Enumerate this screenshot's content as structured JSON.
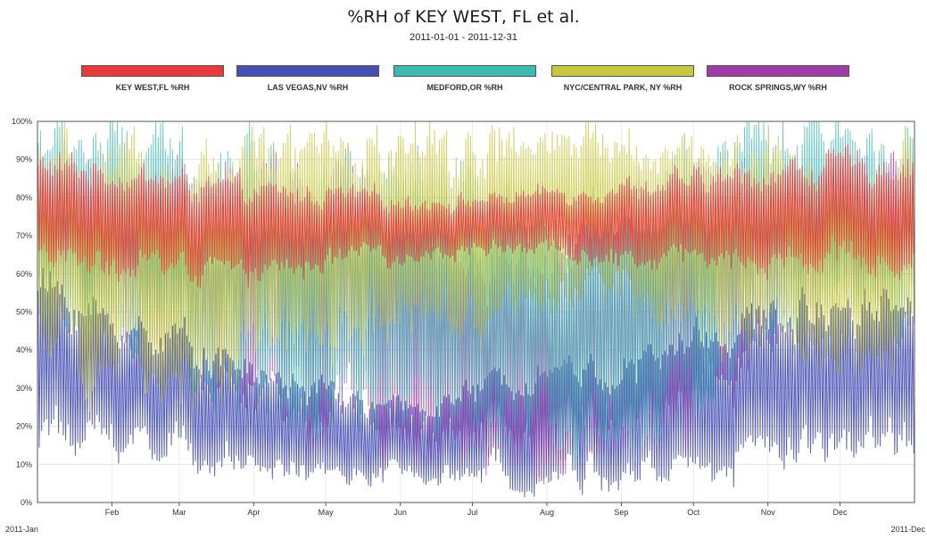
{
  "chart_data": {
    "type": "line",
    "title": "%RH of KEY WEST, FL et al.",
    "subtitle": "2011-01-01 - 2011-12-31",
    "x_range": [
      "2011-01-01",
      "2011-12-31"
    ],
    "x_edge_labels": [
      "2011-Jan",
      "2011-Dec"
    ],
    "x_tick_labels": [
      "Feb",
      "Mar",
      "Apr",
      "May",
      "Jun",
      "Jul",
      "Aug",
      "Sep",
      "Oct",
      "Nov",
      "Dec"
    ],
    "y_tick_labels": [
      "0%",
      "10%",
      "20%",
      "30%",
      "40%",
      "50%",
      "60%",
      "70%",
      "80%",
      "90%",
      "100%"
    ],
    "ylim": [
      0,
      100
    ],
    "y_unit": "%",
    "grid": true,
    "legend_position": "top",
    "resolution": "hourly observations, plotted here as 2 samples per day",
    "series": [
      {
        "name": "KEY WEST,FL %RH",
        "color": "#e83a3a",
        "monthly_typical_range": [
          [
            62,
            90
          ],
          [
            62,
            88
          ],
          [
            60,
            85
          ],
          [
            58,
            82
          ],
          [
            62,
            82
          ],
          [
            64,
            80
          ],
          [
            66,
            80
          ],
          [
            66,
            82
          ],
          [
            64,
            84
          ],
          [
            62,
            85
          ],
          [
            62,
            88
          ],
          [
            62,
            90
          ]
        ]
      },
      {
        "name": "LAS VEGAS,NV %RH",
        "color": "#4650b4",
        "monthly_typical_range": [
          [
            17,
            60
          ],
          [
            15,
            48
          ],
          [
            12,
            45
          ],
          [
            8,
            35
          ],
          [
            6,
            30
          ],
          [
            6,
            25
          ],
          [
            6,
            30
          ],
          [
            8,
            38
          ],
          [
            5,
            35
          ],
          [
            8,
            45
          ],
          [
            12,
            50
          ],
          [
            16,
            55
          ]
        ]
      },
      {
        "name": "MEDFORD,OR %RH",
        "color": "#3cbab4",
        "monthly_typical_range": [
          [
            50,
            98
          ],
          [
            40,
            96
          ],
          [
            35,
            94
          ],
          [
            30,
            92
          ],
          [
            25,
            90
          ],
          [
            20,
            85
          ],
          [
            15,
            80
          ],
          [
            18,
            75
          ],
          [
            18,
            80
          ],
          [
            25,
            92
          ],
          [
            40,
            96
          ],
          [
            50,
            98
          ]
        ]
      },
      {
        "name": "NYC/CENTRAL PARK, NY %RH",
        "color": "#c8c83c",
        "monthly_typical_range": [
          [
            40,
            90
          ],
          [
            30,
            88
          ],
          [
            30,
            90
          ],
          [
            35,
            92
          ],
          [
            40,
            95
          ],
          [
            45,
            95
          ],
          [
            45,
            95
          ],
          [
            50,
            95
          ],
          [
            55,
            96
          ],
          [
            45,
            95
          ],
          [
            40,
            92
          ],
          [
            40,
            90
          ]
        ]
      },
      {
        "name": "ROCK SPRINGS,WY %RH",
        "color": "#a03ca8",
        "monthly_typical_range": [
          [
            55,
            88
          ],
          [
            45,
            85
          ],
          [
            35,
            85
          ],
          [
            25,
            85
          ],
          [
            20,
            88
          ],
          [
            15,
            80
          ],
          [
            12,
            65
          ],
          [
            12,
            70
          ],
          [
            12,
            75
          ],
          [
            20,
            85
          ],
          [
            40,
            88
          ],
          [
            55,
            88
          ]
        ]
      }
    ]
  }
}
